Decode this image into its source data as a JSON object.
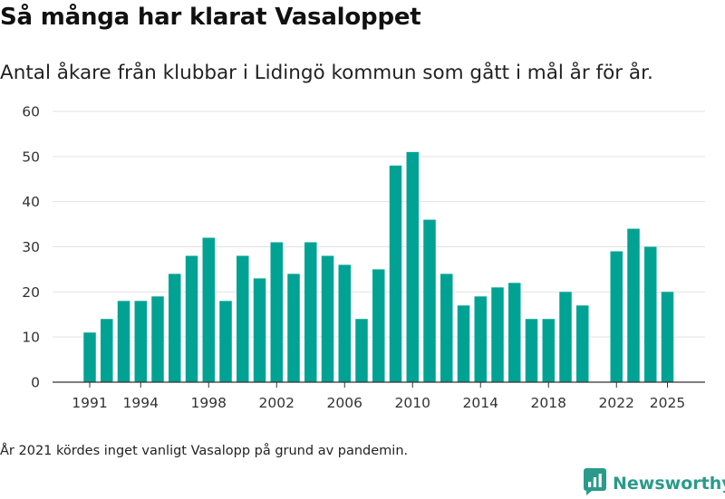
{
  "title": "Så många har klarat Vasaloppet",
  "subtitle": "Antal åkare från klubbar i Lidingö kommun som gått i mål år för år.",
  "footnote": "År 2021 kördes inget vanligt Vasalopp på grund av pandemin.",
  "brand": {
    "name": "Newsworthy",
    "logo_icon": "bar-chart-speech-bubble-icon"
  },
  "colors": {
    "bar": "#00a393",
    "grid": "#e2e2e2",
    "axis": "#333333",
    "brand": "#2a9a8b"
  },
  "chart_data": {
    "type": "bar",
    "title": "Så många har klarat Vasaloppet",
    "xlabel": "",
    "ylabel": "",
    "ylim": [
      0,
      60
    ],
    "yticks": [
      0,
      10,
      20,
      30,
      40,
      50,
      60
    ],
    "xticks": [
      "1991",
      "1994",
      "1998",
      "2002",
      "2006",
      "2010",
      "2014",
      "2018",
      "2022",
      "2025"
    ],
    "grid": true,
    "categories": [
      1991,
      1992,
      1993,
      1994,
      1995,
      1996,
      1997,
      1998,
      1999,
      2000,
      2001,
      2002,
      2003,
      2004,
      2005,
      2006,
      2007,
      2008,
      2009,
      2010,
      2011,
      2012,
      2013,
      2014,
      2015,
      2016,
      2017,
      2018,
      2019,
      2020,
      2021,
      2022,
      2023,
      2024,
      2025
    ],
    "values": [
      11,
      14,
      18,
      18,
      19,
      24,
      28,
      32,
      18,
      28,
      23,
      31,
      24,
      31,
      28,
      26,
      14,
      25,
      48,
      51,
      36,
      24,
      17,
      19,
      21,
      22,
      14,
      14,
      20,
      17,
      null,
      29,
      34,
      30,
      20
    ]
  }
}
